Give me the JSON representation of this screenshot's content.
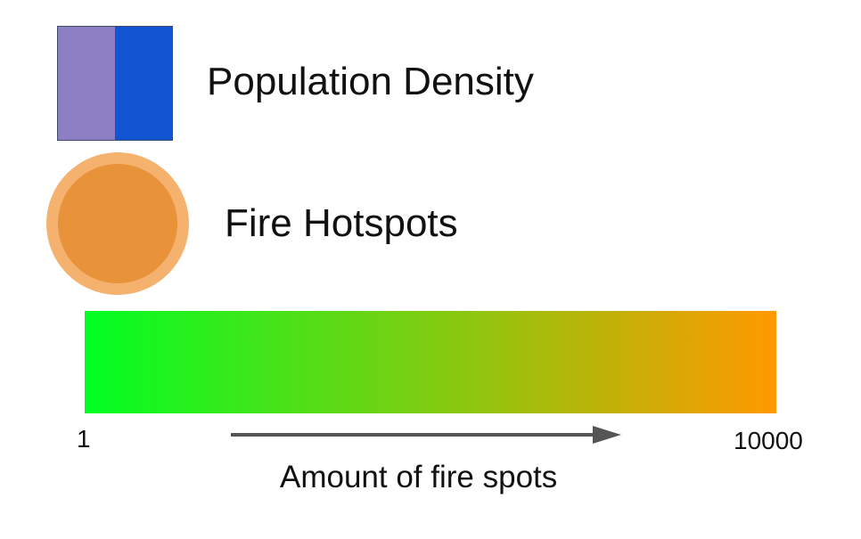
{
  "legend": {
    "population_density": {
      "label": "Population Density",
      "colors": [
        "#8e7fc4",
        "#1255d3"
      ]
    },
    "fire_hotspots": {
      "label": "Fire Hotspots",
      "fill_color": "#e8923a",
      "ring_color": "#f5b26e"
    }
  },
  "scale": {
    "min_label": "1",
    "max_label": "10000",
    "caption": "Amount of fire spots",
    "gradient_start": "#00ff22",
    "gradient_end": "#ff9900",
    "arrow_color": "#555555"
  }
}
